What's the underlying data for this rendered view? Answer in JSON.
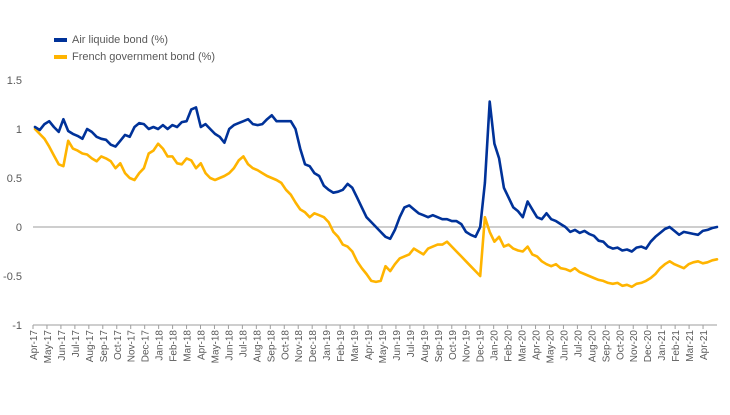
{
  "chart_data": {
    "type": "line",
    "title": "",
    "xlabel": "",
    "ylabel": "",
    "ylim": [
      -1,
      1.5
    ],
    "yticks": [
      -1,
      -0.5,
      0,
      0.5,
      1,
      1.5
    ],
    "ytick_labels": [
      "-1",
      "-0.5",
      "0",
      "0.5",
      "1",
      "1.5"
    ],
    "x_tick_labels": [
      "Apr-17",
      "May-17",
      "Jun-17",
      "Jul-17",
      "Aug-17",
      "Sep-17",
      "Oct-17",
      "Nov-17",
      "Dec-17",
      "Jan-18",
      "Feb-18",
      "Mar-18",
      "Apr-18",
      "May-18",
      "Jun-18",
      "Jul-18",
      "Aug-18",
      "Sep-18",
      "Oct-18",
      "Nov-18",
      "Dec-18",
      "Jan-19",
      "Feb-19",
      "Mar-19",
      "Apr-19",
      "May-19",
      "Jun-19",
      "Jul-19",
      "Aug-19",
      "Sep-19",
      "Oct-19",
      "Nov-19",
      "Dec-19",
      "Jan-20",
      "Feb-20",
      "Mar-20",
      "Apr-20",
      "May-20",
      "Jun-20",
      "Jul-20",
      "Aug-20",
      "Sep-20",
      "Oct-20",
      "Nov-20",
      "Dec-20",
      "Jan-21",
      "Feb-21",
      "Mar-21",
      "Apr-21"
    ],
    "grid": false,
    "legend_position": "top-left",
    "series": [
      {
        "name": "Air liquide bond (%)",
        "color": "#003299",
        "values": [
          1.02,
          0.99,
          1.05,
          1.08,
          1.02,
          0.97,
          1.1,
          0.98,
          0.95,
          0.93,
          0.9,
          1.0,
          0.97,
          0.92,
          0.9,
          0.89,
          0.84,
          0.82,
          0.88,
          0.94,
          0.92,
          1.02,
          1.06,
          1.05,
          1.0,
          1.02,
          1.0,
          1.04,
          1.0,
          1.04,
          1.02,
          1.07,
          1.08,
          1.2,
          1.22,
          1.02,
          1.05,
          1.0,
          0.95,
          0.92,
          0.86,
          1.0,
          1.04,
          1.06,
          1.08,
          1.1,
          1.05,
          1.04,
          1.05,
          1.1,
          1.14,
          1.08,
          1.08,
          1.08,
          1.08,
          1.0,
          0.8,
          0.64,
          0.62,
          0.55,
          0.52,
          0.42,
          0.38,
          0.35,
          0.36,
          0.38,
          0.44,
          0.4,
          0.3,
          0.2,
          0.1,
          0.05,
          0.0,
          -0.05,
          -0.1,
          -0.12,
          -0.03,
          0.1,
          0.2,
          0.22,
          0.18,
          0.14,
          0.12,
          0.1,
          0.12,
          0.1,
          0.08,
          0.08,
          0.06,
          0.06,
          0.03,
          -0.05,
          -0.08,
          -0.1,
          0.0,
          0.45,
          1.28,
          0.85,
          0.7,
          0.4,
          0.3,
          0.2,
          0.16,
          0.1,
          0.26,
          0.18,
          0.1,
          0.08,
          0.14,
          0.08,
          0.06,
          0.03,
          0.0,
          -0.05,
          -0.03,
          -0.06,
          -0.04,
          -0.07,
          -0.09,
          -0.14,
          -0.15,
          -0.2,
          -0.22,
          -0.21,
          -0.24,
          -0.23,
          -0.25,
          -0.21,
          -0.2,
          -0.22,
          -0.15,
          -0.1,
          -0.06,
          -0.02,
          0.0,
          -0.04,
          -0.08,
          -0.05,
          -0.06,
          -0.07,
          -0.08,
          -0.04,
          -0.03,
          -0.01,
          0.0
        ]
      },
      {
        "name": "French government bond (%)",
        "color": "#FFB400",
        "values": [
          1.0,
          0.95,
          0.9,
          0.82,
          0.73,
          0.64,
          0.62,
          0.88,
          0.8,
          0.78,
          0.75,
          0.74,
          0.7,
          0.67,
          0.72,
          0.7,
          0.67,
          0.6,
          0.65,
          0.55,
          0.5,
          0.48,
          0.55,
          0.6,
          0.75,
          0.78,
          0.85,
          0.8,
          0.72,
          0.72,
          0.65,
          0.64,
          0.7,
          0.68,
          0.6,
          0.65,
          0.55,
          0.5,
          0.48,
          0.5,
          0.52,
          0.55,
          0.6,
          0.68,
          0.72,
          0.64,
          0.6,
          0.58,
          0.55,
          0.52,
          0.5,
          0.48,
          0.45,
          0.38,
          0.33,
          0.25,
          0.18,
          0.15,
          0.1,
          0.14,
          0.12,
          0.1,
          0.05,
          -0.05,
          -0.1,
          -0.18,
          -0.2,
          -0.25,
          -0.35,
          -0.42,
          -0.48,
          -0.55,
          -0.56,
          -0.55,
          -0.4,
          -0.45,
          -0.38,
          -0.32,
          -0.3,
          -0.28,
          -0.22,
          -0.25,
          -0.28,
          -0.22,
          -0.2,
          -0.18,
          -0.18,
          -0.15,
          -0.2,
          -0.25,
          -0.3,
          -0.35,
          -0.4,
          -0.45,
          -0.5,
          0.1,
          -0.05,
          -0.15,
          -0.1,
          -0.2,
          -0.18,
          -0.22,
          -0.24,
          -0.25,
          -0.2,
          -0.28,
          -0.3,
          -0.35,
          -0.38,
          -0.4,
          -0.38,
          -0.42,
          -0.43,
          -0.45,
          -0.42,
          -0.46,
          -0.48,
          -0.5,
          -0.52,
          -0.54,
          -0.55,
          -0.57,
          -0.58,
          -0.57,
          -0.6,
          -0.59,
          -0.61,
          -0.58,
          -0.57,
          -0.55,
          -0.52,
          -0.48,
          -0.42,
          -0.38,
          -0.35,
          -0.38,
          -0.4,
          -0.42,
          -0.38,
          -0.36,
          -0.35,
          -0.37,
          -0.36,
          -0.34,
          -0.33
        ]
      }
    ]
  }
}
